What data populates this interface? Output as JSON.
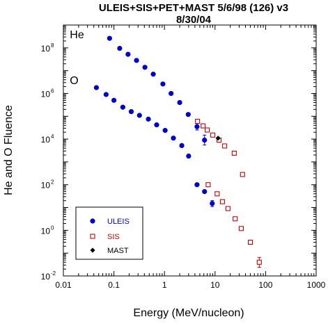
{
  "chart_data": {
    "type": "scatter",
    "title": "ULEIS+SIS+PET+MAST 5/6/98 (126) v3",
    "subtitle": "8/30/04",
    "xlabel": "Energy (MeV/nucleon)",
    "ylabel": "He and O Fluence",
    "x_scale": "log",
    "y_scale": "log",
    "xlim": [
      0.01,
      1000
    ],
    "ylim": [
      0.01,
      1000000000
    ],
    "grid": false,
    "x_ticks": [
      {
        "value": 0.01,
        "label": "0.01"
      },
      {
        "value": 0.1,
        "label": "0.1"
      },
      {
        "value": 1,
        "label": "1"
      },
      {
        "value": 10,
        "label": "10"
      },
      {
        "value": 100,
        "label": "100"
      },
      {
        "value": 1000,
        "label": "1000"
      }
    ],
    "y_ticks": [
      {
        "value": 0.01,
        "base": "10",
        "exp": "-2"
      },
      {
        "value": 1,
        "base": "10",
        "exp": "0"
      },
      {
        "value": 100,
        "base": "10",
        "exp": "2"
      },
      {
        "value": 10000,
        "base": "10",
        "exp": "4"
      },
      {
        "value": 1000000,
        "base": "10",
        "exp": "6"
      },
      {
        "value": 100000000,
        "base": "10",
        "exp": "8"
      }
    ],
    "annotations": [
      {
        "text": "He",
        "x": 0.013,
        "y": 300000000
      },
      {
        "text": "O",
        "x": 0.013,
        "y": 3000000
      }
    ],
    "legend_position": "bottom-left",
    "series": [
      {
        "name": "ULEIS",
        "marker": "circle",
        "color": "#0000cc",
        "group": "He",
        "points": [
          {
            "x": 0.082,
            "y": 260000000
          },
          {
            "x": 0.13,
            "y": 95000000
          },
          {
            "x": 0.19,
            "y": 52000000
          },
          {
            "x": 0.28,
            "y": 28000000
          },
          {
            "x": 0.41,
            "y": 14000000
          },
          {
            "x": 0.6,
            "y": 7000000
          },
          {
            "x": 0.93,
            "y": 2600000
          },
          {
            "x": 1.35,
            "y": 1000000
          },
          {
            "x": 2.0,
            "y": 400000
          },
          {
            "x": 2.95,
            "y": 120000
          },
          {
            "x": 4.4,
            "y": 35000,
            "err": [
              25000,
              48000
            ]
          },
          {
            "x": 6.2,
            "y": 9000,
            "err": [
              5500,
              15000
            ]
          }
        ]
      },
      {
        "name": "ULEIS",
        "marker": "circle",
        "color": "#0000cc",
        "group": "O",
        "points": [
          {
            "x": 0.045,
            "y": 1800000
          },
          {
            "x": 0.07,
            "y": 900000
          },
          {
            "x": 0.1,
            "y": 500000
          },
          {
            "x": 0.15,
            "y": 250000
          },
          {
            "x": 0.22,
            "y": 160000
          },
          {
            "x": 0.32,
            "y": 110000
          },
          {
            "x": 0.48,
            "y": 75000
          },
          {
            "x": 0.7,
            "y": 42000
          },
          {
            "x": 1.03,
            "y": 24000
          },
          {
            "x": 1.5,
            "y": 11000
          },
          {
            "x": 2.2,
            "y": 5200
          },
          {
            "x": 3.0,
            "y": 1800
          },
          {
            "x": 4.4,
            "y": 100
          },
          {
            "x": 6.2,
            "y": 50
          },
          {
            "x": 8.8,
            "y": 15,
            "err": [
              11,
              20
            ]
          }
        ]
      },
      {
        "name": "SIS",
        "marker": "open-square",
        "color": "#cc0000",
        "group": "He",
        "points": [
          {
            "x": 4.5,
            "y": 60000
          },
          {
            "x": 5.8,
            "y": 38000
          },
          {
            "x": 7.0,
            "y": 25000
          },
          {
            "x": 9.0,
            "y": 15000
          },
          {
            "x": 12.0,
            "y": 9000
          },
          {
            "x": 15.5,
            "y": 5000
          },
          {
            "x": 24.0,
            "y": 2400
          },
          {
            "x": 35.0,
            "y": 280
          }
        ]
      },
      {
        "name": "SIS",
        "marker": "open-square",
        "color": "#cc0000",
        "group": "O",
        "points": [
          {
            "x": 7.3,
            "y": 100
          },
          {
            "x": 11.0,
            "y": 40
          },
          {
            "x": 14.0,
            "y": 18
          },
          {
            "x": 18.0,
            "y": 9
          },
          {
            "x": 25.0,
            "y": 3.2
          },
          {
            "x": 33.0,
            "y": 1.2
          },
          {
            "x": 50.0,
            "y": 0.3
          },
          {
            "x": 75.0,
            "y": 0.04,
            "err": [
              0.024,
              0.065
            ]
          }
        ]
      },
      {
        "name": "MAST",
        "marker": "filled-diamond",
        "color": "#000000",
        "group": "He",
        "points": [
          {
            "x": 11.5,
            "y": 11000
          }
        ]
      }
    ],
    "legend": [
      {
        "label": "ULEIS",
        "marker": "circle",
        "color": "#0000cc"
      },
      {
        "label": "SIS",
        "marker": "open-square",
        "color": "#cc0000"
      },
      {
        "label": "MAST",
        "marker": "filled-diamond",
        "color": "#000000"
      }
    ]
  }
}
